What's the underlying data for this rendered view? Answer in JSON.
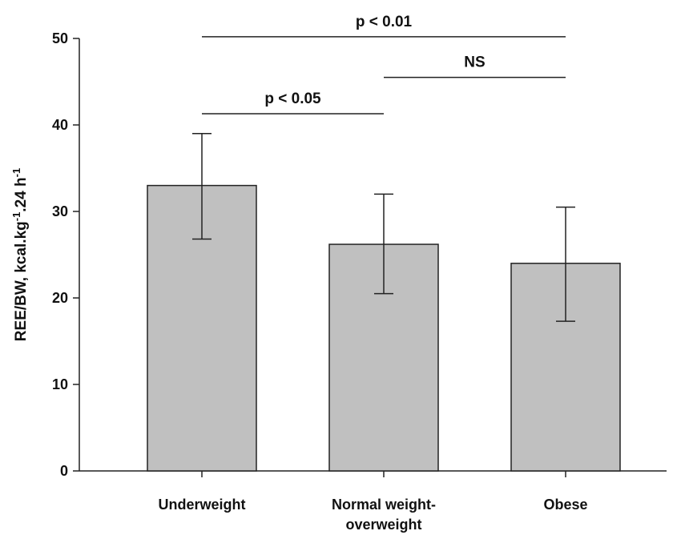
{
  "chart_data": {
    "type": "bar",
    "categories": [
      [
        "Underweight"
      ],
      [
        "Normal weight-",
        "overweight"
      ],
      [
        "Obese"
      ]
    ],
    "values": [
      33.0,
      26.2,
      24.0
    ],
    "error_bars": [
      {
        "low": 26.8,
        "high": 39.0
      },
      {
        "low": 20.5,
        "high": 32.0
      },
      {
        "low": 17.3,
        "high": 30.5
      }
    ],
    "ylabel": {
      "parts": [
        {
          "text": "REE/BW, kcal.kg",
          "sup": false
        },
        {
          "text": "-1",
          "sup": true
        },
        {
          "text": ".24 h",
          "sup": false
        },
        {
          "text": "-1",
          "sup": true
        }
      ]
    },
    "ylim": [
      0,
      50
    ],
    "yticks": [
      0,
      10,
      20,
      30,
      40,
      50
    ],
    "significance": [
      {
        "from": 0,
        "to": 2,
        "level": 50.2,
        "label": "p < 0.01"
      },
      {
        "from": 1,
        "to": 2,
        "level": 45.5,
        "label": "NS"
      },
      {
        "from": 0,
        "to": 1,
        "level": 41.3,
        "label": "p < 0.05"
      }
    ],
    "bar_color": "#c0c0c0",
    "grid": false,
    "legend": "none"
  }
}
